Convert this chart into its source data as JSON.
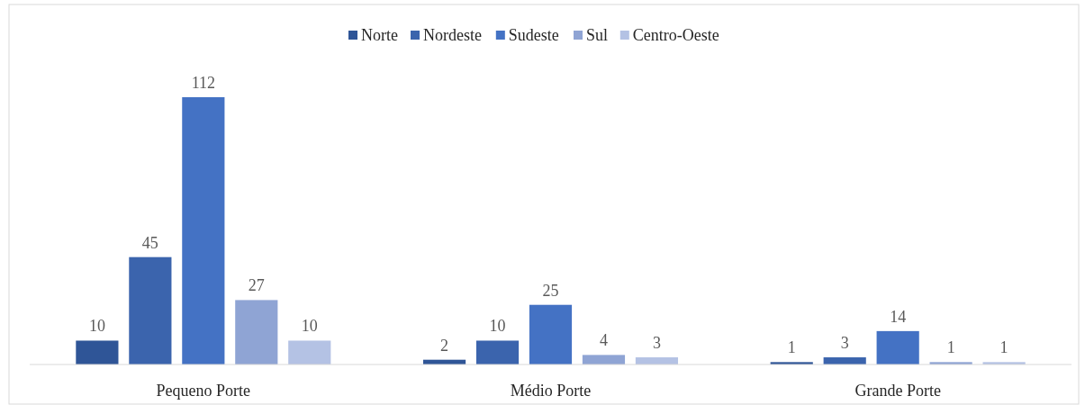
{
  "chart_data": {
    "type": "bar",
    "categories": [
      "Pequeno Porte",
      "Médio Porte",
      "Grande Porte"
    ],
    "series": [
      {
        "name": "Norte",
        "color": "#2f5597",
        "values": [
          10,
          2,
          1
        ]
      },
      {
        "name": "Nordeste",
        "color": "#3b64ad",
        "values": [
          45,
          10,
          3
        ]
      },
      {
        "name": "Sudeste",
        "color": "#4472c4",
        "values": [
          112,
          25,
          14
        ]
      },
      {
        "name": "Sul",
        "color": "#8fa4d4",
        "values": [
          27,
          4,
          1
        ]
      },
      {
        "name": "Centro-Oeste",
        "color": "#b4c2e4",
        "values": [
          10,
          3,
          1
        ]
      }
    ],
    "data_labels": true,
    "legend": "top",
    "grid": false
  }
}
